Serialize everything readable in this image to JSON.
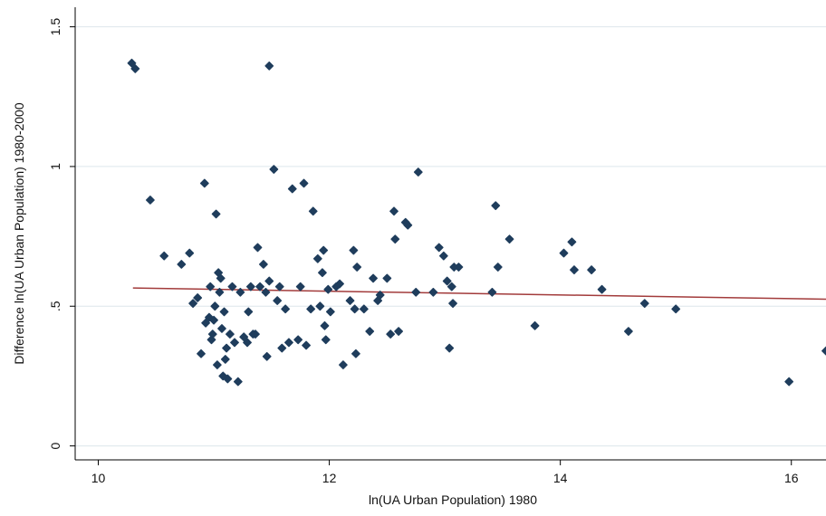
{
  "chart_data": {
    "type": "scatter",
    "title": "",
    "xlabel": "ln(UA Urban Population) 1980",
    "ylabel": "Difference ln(UA Urban Population) 1980-2000",
    "xlim": [
      9.8,
      16.3
    ],
    "ylim": [
      -0.05,
      1.57
    ],
    "xticks": [
      10,
      12,
      14,
      16
    ],
    "xtick_labels": [
      "10",
      "12",
      "14",
      "16"
    ],
    "yticks": [
      0,
      0.5,
      1,
      1.5
    ],
    "ytick_labels": [
      "0",
      ".5",
      "1",
      "1.5"
    ],
    "grid": "horizontal",
    "legend": "none",
    "colors": {
      "points": "#1f3d5c",
      "fit_line": "#a23b3b",
      "grid": "#dde6ec",
      "axis": "#000000"
    },
    "series": [
      {
        "type": "scatter",
        "points": [
          [
            10.29,
            1.37
          ],
          [
            10.32,
            1.35
          ],
          [
            11.48,
            1.36
          ],
          [
            10.45,
            0.88
          ],
          [
            10.57,
            0.68
          ],
          [
            10.72,
            0.65
          ],
          [
            10.79,
            0.69
          ],
          [
            10.82,
            0.51
          ],
          [
            10.86,
            0.53
          ],
          [
            10.89,
            0.33
          ],
          [
            10.92,
            0.94
          ],
          [
            10.93,
            0.44
          ],
          [
            10.96,
            0.46
          ],
          [
            10.97,
            0.57
          ],
          [
            10.98,
            0.38
          ],
          [
            10.99,
            0.4
          ],
          [
            11.0,
            0.45
          ],
          [
            11.01,
            0.5
          ],
          [
            11.02,
            0.83
          ],
          [
            11.03,
            0.29
          ],
          [
            11.04,
            0.62
          ],
          [
            11.05,
            0.55
          ],
          [
            11.06,
            0.6
          ],
          [
            11.07,
            0.42
          ],
          [
            11.08,
            0.25
          ],
          [
            11.09,
            0.48
          ],
          [
            11.1,
            0.31
          ],
          [
            11.11,
            0.35
          ],
          [
            11.12,
            0.24
          ],
          [
            11.14,
            0.4
          ],
          [
            11.16,
            0.57
          ],
          [
            11.18,
            0.37
          ],
          [
            11.21,
            0.23
          ],
          [
            11.23,
            0.55
          ],
          [
            11.26,
            0.39
          ],
          [
            11.29,
            0.37
          ],
          [
            11.3,
            0.48
          ],
          [
            11.32,
            0.57
          ],
          [
            11.34,
            0.4
          ],
          [
            11.36,
            0.4
          ],
          [
            11.38,
            0.71
          ],
          [
            11.4,
            0.57
          ],
          [
            11.43,
            0.65
          ],
          [
            11.45,
            0.55
          ],
          [
            11.46,
            0.32
          ],
          [
            11.48,
            0.59
          ],
          [
            11.52,
            0.99
          ],
          [
            11.55,
            0.52
          ],
          [
            11.57,
            0.57
          ],
          [
            11.59,
            0.35
          ],
          [
            11.62,
            0.49
          ],
          [
            11.65,
            0.37
          ],
          [
            11.68,
            0.92
          ],
          [
            11.73,
            0.38
          ],
          [
            11.75,
            0.57
          ],
          [
            11.78,
            0.94
          ],
          [
            11.8,
            0.36
          ],
          [
            11.84,
            0.49
          ],
          [
            11.86,
            0.84
          ],
          [
            11.9,
            0.67
          ],
          [
            11.92,
            0.5
          ],
          [
            11.94,
            0.62
          ],
          [
            11.95,
            0.7
          ],
          [
            11.96,
            0.43
          ],
          [
            11.97,
            0.38
          ],
          [
            11.99,
            0.56
          ],
          [
            12.01,
            0.48
          ],
          [
            12.06,
            0.57
          ],
          [
            12.09,
            0.58
          ],
          [
            12.12,
            0.29
          ],
          [
            12.18,
            0.52
          ],
          [
            12.21,
            0.7
          ],
          [
            12.22,
            0.49
          ],
          [
            12.23,
            0.33
          ],
          [
            12.24,
            0.64
          ],
          [
            12.3,
            0.49
          ],
          [
            12.35,
            0.41
          ],
          [
            12.38,
            0.6
          ],
          [
            12.42,
            0.52
          ],
          [
            12.44,
            0.54
          ],
          [
            12.5,
            0.6
          ],
          [
            12.53,
            0.4
          ],
          [
            12.56,
            0.84
          ],
          [
            12.57,
            0.74
          ],
          [
            12.6,
            0.41
          ],
          [
            12.66,
            0.8
          ],
          [
            12.68,
            0.79
          ],
          [
            12.75,
            0.55
          ],
          [
            12.77,
            0.98
          ],
          [
            12.9,
            0.55
          ],
          [
            12.95,
            0.71
          ],
          [
            12.99,
            0.68
          ],
          [
            13.02,
            0.59
          ],
          [
            13.04,
            0.35
          ],
          [
            13.06,
            0.57
          ],
          [
            13.07,
            0.51
          ],
          [
            13.08,
            0.64
          ],
          [
            13.12,
            0.64
          ],
          [
            13.41,
            0.55
          ],
          [
            13.44,
            0.86
          ],
          [
            13.46,
            0.64
          ],
          [
            13.56,
            0.74
          ],
          [
            13.78,
            0.43
          ],
          [
            14.03,
            0.69
          ],
          [
            14.1,
            0.73
          ],
          [
            14.12,
            0.63
          ],
          [
            14.27,
            0.63
          ],
          [
            14.36,
            0.56
          ],
          [
            14.59,
            0.41
          ],
          [
            14.73,
            0.51
          ],
          [
            15.0,
            0.49
          ],
          [
            15.98,
            0.23
          ],
          [
            16.3,
            0.34
          ]
        ]
      },
      {
        "type": "line",
        "points": [
          [
            10.3,
            0.565
          ],
          [
            16.3,
            0.525
          ]
        ]
      }
    ]
  }
}
